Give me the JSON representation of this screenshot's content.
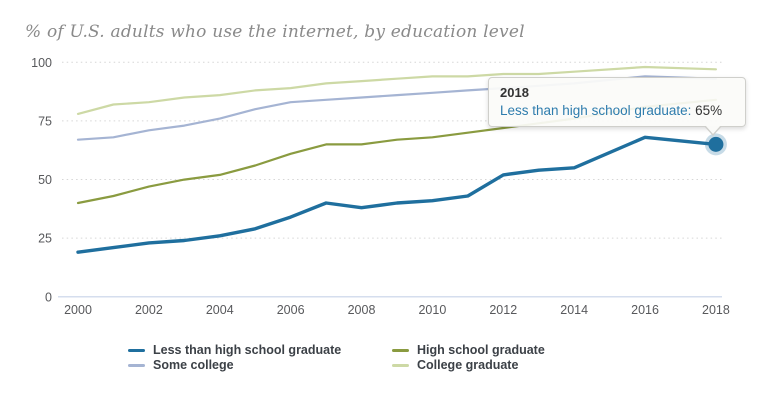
{
  "header": {
    "title": "% of U.S. adults who use the internet, by education level"
  },
  "chart_data": {
    "type": "line",
    "title": "% of U.S. adults who use the internet, by education level",
    "x": [
      2000,
      2001,
      2002,
      2003,
      2004,
      2005,
      2006,
      2007,
      2008,
      2009,
      2010,
      2011,
      2012,
      2013,
      2014,
      2016,
      2018
    ],
    "series": [
      {
        "name": "Less than high school graduate",
        "color": "#1f6f9e",
        "emphasis": true,
        "values": [
          19,
          21,
          23,
          24,
          26,
          29,
          34,
          40,
          38,
          40,
          41,
          43,
          52,
          54,
          55,
          68,
          65
        ]
      },
      {
        "name": "High school graduate",
        "color": "#8a9b40",
        "emphasis": false,
        "values": [
          40,
          43,
          47,
          50,
          52,
          56,
          61,
          65,
          65,
          67,
          68,
          70,
          72,
          74,
          76,
          81,
          84
        ]
      },
      {
        "name": "Some college",
        "color": "#a5b4d3",
        "emphasis": false,
        "values": [
          67,
          68,
          71,
          73,
          76,
          80,
          83,
          84,
          85,
          86,
          87,
          88,
          89,
          90,
          91,
          94,
          93
        ]
      },
      {
        "name": "College graduate",
        "color": "#cdd9a5",
        "emphasis": false,
        "values": [
          78,
          82,
          83,
          85,
          86,
          88,
          89,
          91,
          92,
          93,
          94,
          94,
          95,
          95,
          96,
          98,
          97
        ]
      }
    ],
    "xlabel": "",
    "ylabel": "",
    "ylim": [
      0,
      100
    ],
    "yticks": [
      0,
      25,
      50,
      75,
      100
    ],
    "xticks": [
      2000,
      2002,
      2004,
      2006,
      2008,
      2010,
      2012,
      2014,
      2016,
      2018
    ],
    "grid": "horizontal-dotted",
    "legend_position": "bottom",
    "highlight": {
      "x": 2018,
      "series": "Less than high school graduate",
      "value": 65
    }
  },
  "tooltip": {
    "title": "2018",
    "series_label": "Less than high school graduate:",
    "value": " 65%"
  },
  "legend": {
    "items": [
      {
        "label": "Less than high school graduate",
        "color": "#1f6f9e"
      },
      {
        "label": "High school graduate",
        "color": "#8a9b40"
      },
      {
        "label": "Some college",
        "color": "#a5b4d3"
      },
      {
        "label": "College graduate",
        "color": "#cdd9a5"
      }
    ]
  },
  "style_colors": {
    "grid_dotted": "#d6d6d6",
    "zero_axis": "#c7d3e8",
    "tick_text": "#58595c",
    "title_text": "#8a8a8a"
  }
}
